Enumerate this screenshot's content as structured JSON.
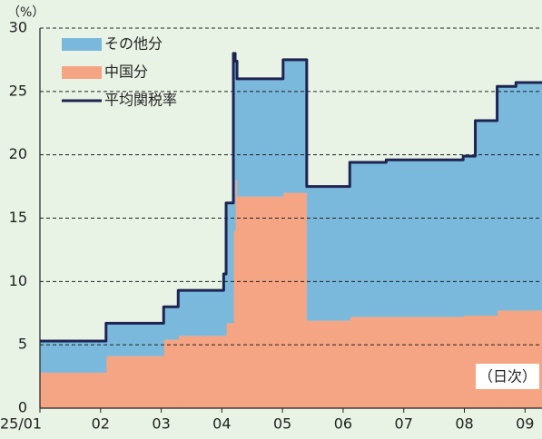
{
  "chart_data": {
    "type": "stacked_step_area",
    "unit_label": "（%）",
    "frequency_label": "（日次）",
    "x": [
      1,
      2.09,
      3.04,
      3.28,
      4.03,
      4.07,
      4.19,
      4.22,
      4.25,
      5.01,
      5.4,
      6.11,
      6.71,
      7.98,
      8.18,
      8.54,
      8.85
    ],
    "series": [
      {
        "name": "中国分",
        "color": "#f5a583",
        "kind": "area",
        "values": [
          2.8,
          4.1,
          5.4,
          5.7,
          5.7,
          6.7,
          14.0,
          18.0,
          16.7,
          17.0,
          6.9,
          7.2,
          7.2,
          7.3,
          7.3,
          7.7,
          7.7
        ]
      },
      {
        "name": "その他分",
        "color": "#7ab8dc",
        "kind": "area",
        "values": [
          2.5,
          2.6,
          2.6,
          3.6,
          4.9,
          9.5,
          14.0,
          9.4,
          9.3,
          10.5,
          10.6,
          12.2,
          12.4,
          12.6,
          15.4,
          17.7,
          18.0
        ]
      },
      {
        "name": "平均関税率",
        "color": "#1e2452",
        "kind": "line",
        "values": [
          5.3,
          6.7,
          8.0,
          9.3,
          10.6,
          16.2,
          28.0,
          27.4,
          26.0,
          27.5,
          17.5,
          19.4,
          19.6,
          19.9,
          22.7,
          25.4,
          25.7
        ]
      }
    ],
    "legend_order": [
      1,
      0,
      2
    ],
    "xlim": [
      1,
      9.28
    ],
    "xticks": [
      {
        "value": 1,
        "label": "25/01"
      },
      {
        "value": 2,
        "label": "02"
      },
      {
        "value": 3,
        "label": "03"
      },
      {
        "value": 4,
        "label": "04"
      },
      {
        "value": 5,
        "label": "05"
      },
      {
        "value": 6,
        "label": "06"
      },
      {
        "value": 7,
        "label": "07"
      },
      {
        "value": 8,
        "label": "08"
      },
      {
        "value": 9,
        "label": "09"
      }
    ],
    "ylim": [
      0,
      30
    ],
    "yticks": [
      0,
      5,
      10,
      15,
      20,
      25,
      30
    ],
    "grid": true,
    "legend": "top-left"
  }
}
